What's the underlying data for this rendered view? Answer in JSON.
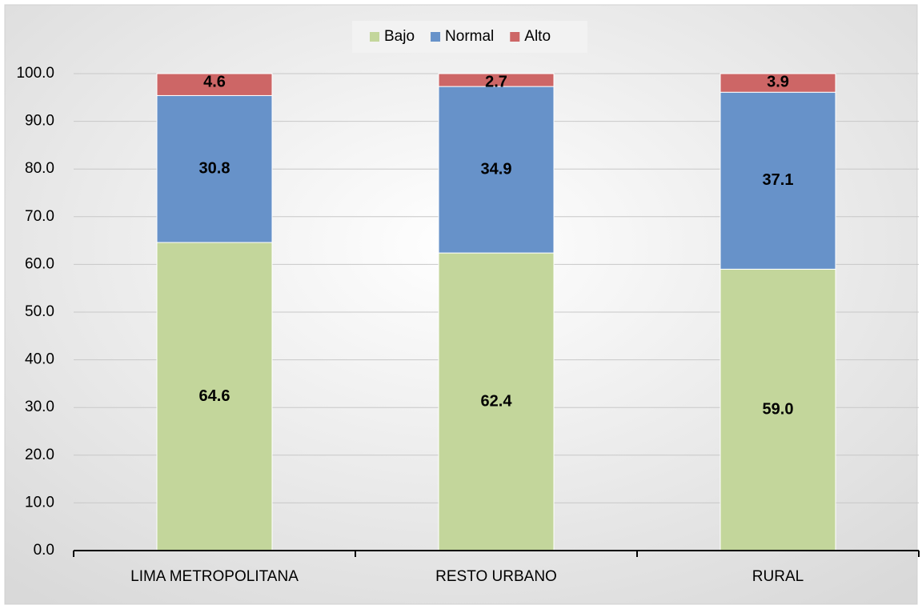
{
  "chart_data": {
    "type": "bar",
    "stacked": true,
    "categories": [
      "LIMA METROPOLITANA",
      "RESTO URBANO",
      "RURAL"
    ],
    "series": [
      {
        "name": "Bajo",
        "color": "#c3d69b",
        "values": [
          64.6,
          62.4,
          59.0
        ],
        "value_labels": [
          "64.6",
          "62.4",
          "59.0"
        ]
      },
      {
        "name": "Normal",
        "color": "#6792c9",
        "values": [
          30.8,
          34.9,
          37.1
        ],
        "value_labels": [
          "30.8",
          "34.9",
          "37.1"
        ]
      },
      {
        "name": "Alto",
        "color": "#cd6666",
        "values": [
          4.6,
          2.7,
          3.9
        ],
        "value_labels": [
          "4.6",
          "2.7",
          "3.9"
        ]
      }
    ],
    "ylim": [
      0,
      100
    ],
    "yticks": [
      {
        "value": 0,
        "label": "0.0"
      },
      {
        "value": 10,
        "label": "10.0"
      },
      {
        "value": 20,
        "label": "20.0"
      },
      {
        "value": 30,
        "label": "30.0"
      },
      {
        "value": 40,
        "label": "40.0"
      },
      {
        "value": 50,
        "label": "50.0"
      },
      {
        "value": 60,
        "label": "60.0"
      },
      {
        "value": 70,
        "label": "70.0"
      },
      {
        "value": 80,
        "label": "80.0"
      },
      {
        "value": 90,
        "label": "90.0"
      },
      {
        "value": 100,
        "label": "100.0"
      }
    ],
    "grid": true,
    "legend": "top"
  }
}
